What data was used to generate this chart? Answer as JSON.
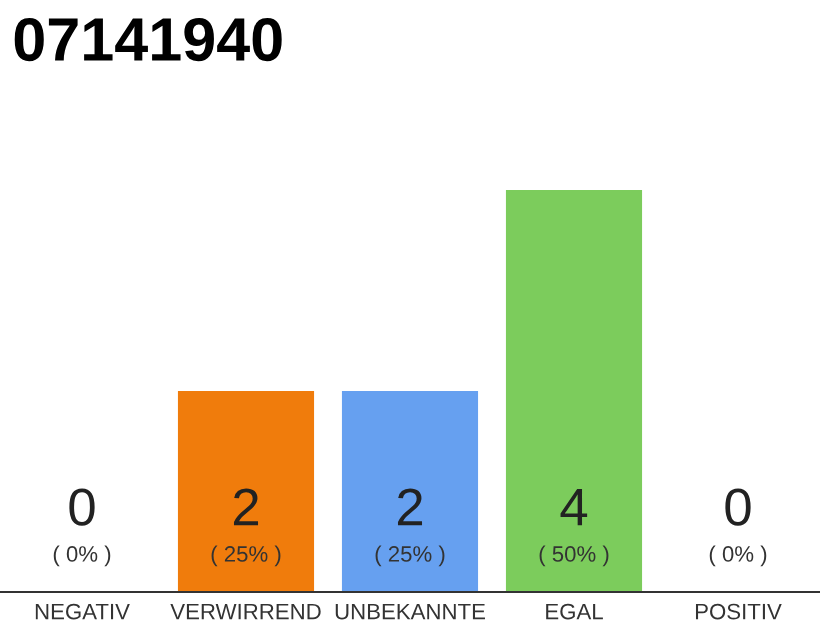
{
  "chart_data": {
    "type": "bar",
    "title": "07141940",
    "categories": [
      "NEGATIV",
      "VERWIRREND",
      "UNBEKANNTE",
      "EGAL",
      "POSITIV"
    ],
    "values": [
      0,
      2,
      2,
      4,
      0
    ],
    "colors": [
      "#cccccc",
      "#f07c0c",
      "#66a0f0",
      "#7ccc5c",
      "#cccccc"
    ],
    "value_labels": [
      "0\n( 0% )",
      "2\n( 25% )",
      "2\n( 25% )",
      "4\n( 50% )",
      "0\n( 0% )"
    ],
    "ylim": [
      0,
      4
    ],
    "tick_labels": "x",
    "grid": false,
    "legend": false
  }
}
